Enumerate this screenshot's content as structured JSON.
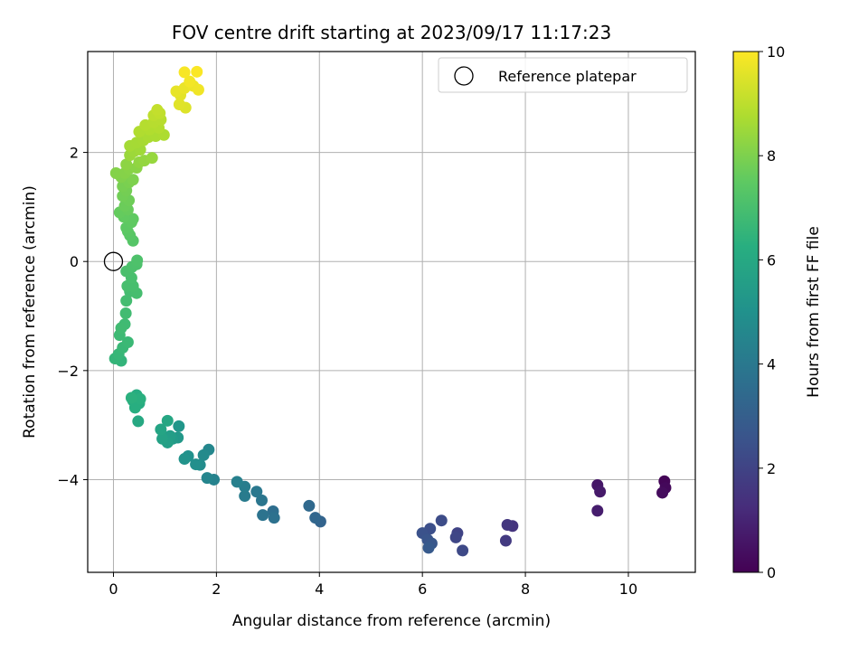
{
  "chart_data": {
    "type": "scatter",
    "title": "FOV centre drift starting at 2023/09/17 11:17:23",
    "xlabel": "Angular distance from reference (arcmin)",
    "ylabel": "Rotation from reference (arcmin)",
    "xlim": [
      -0.5,
      11.3
    ],
    "ylim": [
      -5.7,
      3.85
    ],
    "xticks": [
      0,
      2,
      4,
      6,
      8,
      10
    ],
    "yticks": [
      -4,
      -2,
      0,
      2
    ],
    "grid": true,
    "legend": {
      "position": "top-right",
      "entries": [
        "Reference platepar"
      ]
    },
    "reference_point": {
      "x": 0,
      "y": 0,
      "label": "Reference platepar"
    },
    "colorbar": {
      "label": "Hours from first FF file",
      "range": [
        0,
        10
      ],
      "ticks": [
        0,
        2,
        4,
        6,
        8,
        10
      ],
      "colormap": "viridis"
    },
    "points": [
      {
        "x": 10.7,
        "y": -4.03,
        "h": 0.1
      },
      {
        "x": 10.72,
        "y": -4.15,
        "h": 0.2
      },
      {
        "x": 10.66,
        "y": -4.24,
        "h": 0.3
      },
      {
        "x": 9.4,
        "y": -4.1,
        "h": 0.6
      },
      {
        "x": 9.45,
        "y": -4.22,
        "h": 0.7
      },
      {
        "x": 9.4,
        "y": -4.57,
        "h": 0.8
      },
      {
        "x": 7.75,
        "y": -4.85,
        "h": 1.5
      },
      {
        "x": 7.65,
        "y": -4.83,
        "h": 1.6
      },
      {
        "x": 7.62,
        "y": -5.12,
        "h": 1.7
      },
      {
        "x": 6.68,
        "y": -4.98,
        "h": 2.0
      },
      {
        "x": 6.65,
        "y": -5.06,
        "h": 2.1
      },
      {
        "x": 6.78,
        "y": -5.3,
        "h": 2.2
      },
      {
        "x": 6.37,
        "y": -4.75,
        "h": 2.3
      },
      {
        "x": 6.15,
        "y": -4.9,
        "h": 2.4
      },
      {
        "x": 6.0,
        "y": -4.98,
        "h": 2.5
      },
      {
        "x": 6.1,
        "y": -5.1,
        "h": 2.6
      },
      {
        "x": 6.18,
        "y": -5.17,
        "h": 2.7
      },
      {
        "x": 6.12,
        "y": -5.25,
        "h": 2.8
      },
      {
        "x": 4.02,
        "y": -4.77,
        "h": 3.2
      },
      {
        "x": 3.92,
        "y": -4.7,
        "h": 3.3
      },
      {
        "x": 3.8,
        "y": -4.48,
        "h": 3.4
      },
      {
        "x": 3.1,
        "y": -4.58,
        "h": 3.6
      },
      {
        "x": 3.12,
        "y": -4.7,
        "h": 3.7
      },
      {
        "x": 2.9,
        "y": -4.65,
        "h": 3.8
      },
      {
        "x": 2.88,
        "y": -4.38,
        "h": 3.9
      },
      {
        "x": 2.78,
        "y": -4.22,
        "h": 4.0
      },
      {
        "x": 2.55,
        "y": -4.3,
        "h": 4.1
      },
      {
        "x": 2.55,
        "y": -4.13,
        "h": 4.2
      },
      {
        "x": 2.4,
        "y": -4.04,
        "h": 4.3
      },
      {
        "x": 1.95,
        "y": -4.0,
        "h": 4.4
      },
      {
        "x": 1.82,
        "y": -3.97,
        "h": 4.5
      },
      {
        "x": 1.85,
        "y": -3.45,
        "h": 4.6
      },
      {
        "x": 1.75,
        "y": -3.55,
        "h": 4.7
      },
      {
        "x": 1.68,
        "y": -3.73,
        "h": 4.8
      },
      {
        "x": 1.6,
        "y": -3.72,
        "h": 4.9
      },
      {
        "x": 1.45,
        "y": -3.57,
        "h": 5.0
      },
      {
        "x": 1.38,
        "y": -3.62,
        "h": 5.1
      },
      {
        "x": 1.27,
        "y": -3.02,
        "h": 5.2
      },
      {
        "x": 1.25,
        "y": -3.23,
        "h": 5.3
      },
      {
        "x": 1.15,
        "y": -3.25,
        "h": 5.4
      },
      {
        "x": 1.1,
        "y": -3.2,
        "h": 5.5
      },
      {
        "x": 1.05,
        "y": -3.32,
        "h": 5.6
      },
      {
        "x": 0.95,
        "y": -3.25,
        "h": 5.7
      },
      {
        "x": 0.92,
        "y": -3.08,
        "h": 5.8
      },
      {
        "x": 1.05,
        "y": -2.92,
        "h": 5.9
      },
      {
        "x": 0.48,
        "y": -2.93,
        "h": 6.0
      },
      {
        "x": 0.5,
        "y": -2.6,
        "h": 6.1
      },
      {
        "x": 0.45,
        "y": -2.45,
        "h": 6.15
      },
      {
        "x": 0.38,
        "y": -2.55,
        "h": 6.2
      },
      {
        "x": 0.42,
        "y": -2.68,
        "h": 6.25
      },
      {
        "x": 0.52,
        "y": -2.52,
        "h": 6.3
      },
      {
        "x": 0.35,
        "y": -2.5,
        "h": 6.35
      },
      {
        "x": 0.15,
        "y": -1.82,
        "h": 6.5
      },
      {
        "x": 0.03,
        "y": -1.78,
        "h": 6.55
      },
      {
        "x": 0.1,
        "y": -1.7,
        "h": 6.6
      },
      {
        "x": 0.18,
        "y": -1.58,
        "h": 6.65
      },
      {
        "x": 0.28,
        "y": -1.48,
        "h": 6.7
      },
      {
        "x": 0.12,
        "y": -1.35,
        "h": 6.75
      },
      {
        "x": 0.22,
        "y": -1.15,
        "h": 6.8
      },
      {
        "x": 0.15,
        "y": -1.22,
        "h": 6.82
      },
      {
        "x": 0.24,
        "y": -0.95,
        "h": 6.85
      },
      {
        "x": 0.25,
        "y": -0.72,
        "h": 6.9
      },
      {
        "x": 0.32,
        "y": -0.55,
        "h": 6.92
      },
      {
        "x": 0.45,
        "y": -0.58,
        "h": 6.95
      },
      {
        "x": 0.38,
        "y": -0.45,
        "h": 6.98
      },
      {
        "x": 0.27,
        "y": -0.45,
        "h": 7.0
      },
      {
        "x": 0.35,
        "y": -0.3,
        "h": 7.02
      },
      {
        "x": 0.25,
        "y": -0.18,
        "h": 7.05
      },
      {
        "x": 0.36,
        "y": -0.1,
        "h": 7.08
      },
      {
        "x": 0.45,
        "y": -0.05,
        "h": 7.1
      },
      {
        "x": 0.46,
        "y": 0.02,
        "h": 7.12
      },
      {
        "x": 0.38,
        "y": 0.38,
        "h": 7.3
      },
      {
        "x": 0.32,
        "y": 0.48,
        "h": 7.35
      },
      {
        "x": 0.28,
        "y": 0.55,
        "h": 7.4
      },
      {
        "x": 0.25,
        "y": 0.62,
        "h": 7.45
      },
      {
        "x": 0.35,
        "y": 0.72,
        "h": 7.5
      },
      {
        "x": 0.38,
        "y": 0.78,
        "h": 7.52
      },
      {
        "x": 0.2,
        "y": 0.82,
        "h": 7.55
      },
      {
        "x": 0.12,
        "y": 0.9,
        "h": 7.6
      },
      {
        "x": 0.28,
        "y": 0.95,
        "h": 7.65
      },
      {
        "x": 0.22,
        "y": 1.02,
        "h": 7.7
      },
      {
        "x": 0.3,
        "y": 1.12,
        "h": 7.75
      },
      {
        "x": 0.18,
        "y": 1.2,
        "h": 7.8
      },
      {
        "x": 0.25,
        "y": 1.3,
        "h": 7.85
      },
      {
        "x": 0.18,
        "y": 1.38,
        "h": 7.9
      },
      {
        "x": 0.3,
        "y": 1.45,
        "h": 7.95
      },
      {
        "x": 0.38,
        "y": 1.5,
        "h": 8.0
      },
      {
        "x": 0.15,
        "y": 1.55,
        "h": 8.05
      },
      {
        "x": 0.05,
        "y": 1.62,
        "h": 8.1
      },
      {
        "x": 0.22,
        "y": 1.62,
        "h": 8.12
      },
      {
        "x": 0.3,
        "y": 1.7,
        "h": 8.15
      },
      {
        "x": 0.45,
        "y": 1.72,
        "h": 8.2
      },
      {
        "x": 0.25,
        "y": 1.78,
        "h": 8.25
      },
      {
        "x": 0.5,
        "y": 1.82,
        "h": 8.3
      },
      {
        "x": 0.6,
        "y": 1.85,
        "h": 8.35
      },
      {
        "x": 0.75,
        "y": 1.9,
        "h": 8.4
      },
      {
        "x": 0.32,
        "y": 1.95,
        "h": 8.45
      },
      {
        "x": 0.4,
        "y": 2.02,
        "h": 8.5
      },
      {
        "x": 0.52,
        "y": 2.05,
        "h": 8.55
      },
      {
        "x": 0.32,
        "y": 2.12,
        "h": 8.6
      },
      {
        "x": 0.45,
        "y": 2.18,
        "h": 8.62
      },
      {
        "x": 0.58,
        "y": 2.22,
        "h": 8.65
      },
      {
        "x": 0.68,
        "y": 2.28,
        "h": 8.7
      },
      {
        "x": 0.82,
        "y": 2.3,
        "h": 8.72
      },
      {
        "x": 0.98,
        "y": 2.32,
        "h": 8.75
      },
      {
        "x": 0.5,
        "y": 2.38,
        "h": 8.8
      },
      {
        "x": 0.7,
        "y": 2.42,
        "h": 8.82
      },
      {
        "x": 0.88,
        "y": 2.45,
        "h": 8.85
      },
      {
        "x": 0.62,
        "y": 2.5,
        "h": 8.88
      },
      {
        "x": 0.78,
        "y": 2.55,
        "h": 8.9
      },
      {
        "x": 0.92,
        "y": 2.6,
        "h": 8.92
      },
      {
        "x": 0.78,
        "y": 2.68,
        "h": 9.0
      },
      {
        "x": 0.9,
        "y": 2.72,
        "h": 9.05
      },
      {
        "x": 0.85,
        "y": 2.78,
        "h": 9.1
      },
      {
        "x": 1.4,
        "y": 2.82,
        "h": 9.5
      },
      {
        "x": 1.28,
        "y": 2.88,
        "h": 9.55
      },
      {
        "x": 1.3,
        "y": 3.05,
        "h": 9.6
      },
      {
        "x": 1.22,
        "y": 3.12,
        "h": 9.65
      },
      {
        "x": 1.38,
        "y": 3.18,
        "h": 9.7
      },
      {
        "x": 1.55,
        "y": 3.22,
        "h": 9.75
      },
      {
        "x": 1.65,
        "y": 3.15,
        "h": 9.8
      },
      {
        "x": 1.48,
        "y": 3.3,
        "h": 9.85
      },
      {
        "x": 1.38,
        "y": 3.47,
        "h": 9.9
      },
      {
        "x": 1.62,
        "y": 3.48,
        "h": 9.95
      }
    ]
  }
}
